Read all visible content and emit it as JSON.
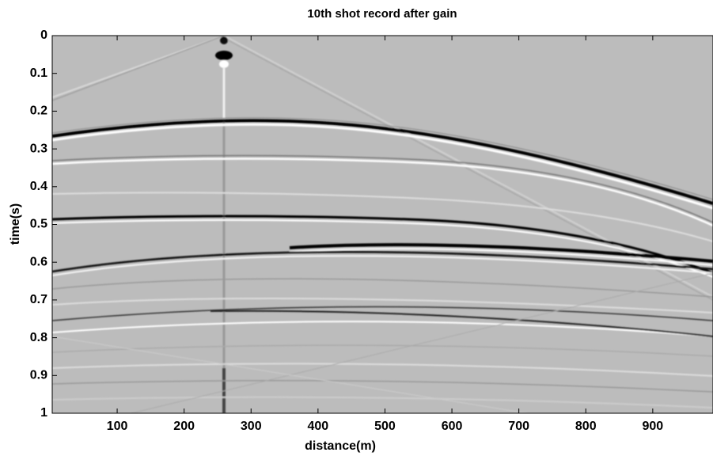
{
  "chart_data": {
    "type": "image",
    "title": "10th shot record after gain",
    "x_label": "distance(m)",
    "y_label": "time(s)",
    "xlim": [
      3,
      990
    ],
    "ylim": [
      0,
      1
    ],
    "y_reversed": true,
    "xticks": [
      100,
      200,
      300,
      400,
      500,
      600,
      700,
      800,
      900
    ],
    "yticks": [
      0,
      0.1,
      0.2,
      0.3,
      0.4,
      0.5,
      0.6,
      0.7,
      0.8,
      0.9,
      1
    ],
    "colormap": "gray"
  }
}
